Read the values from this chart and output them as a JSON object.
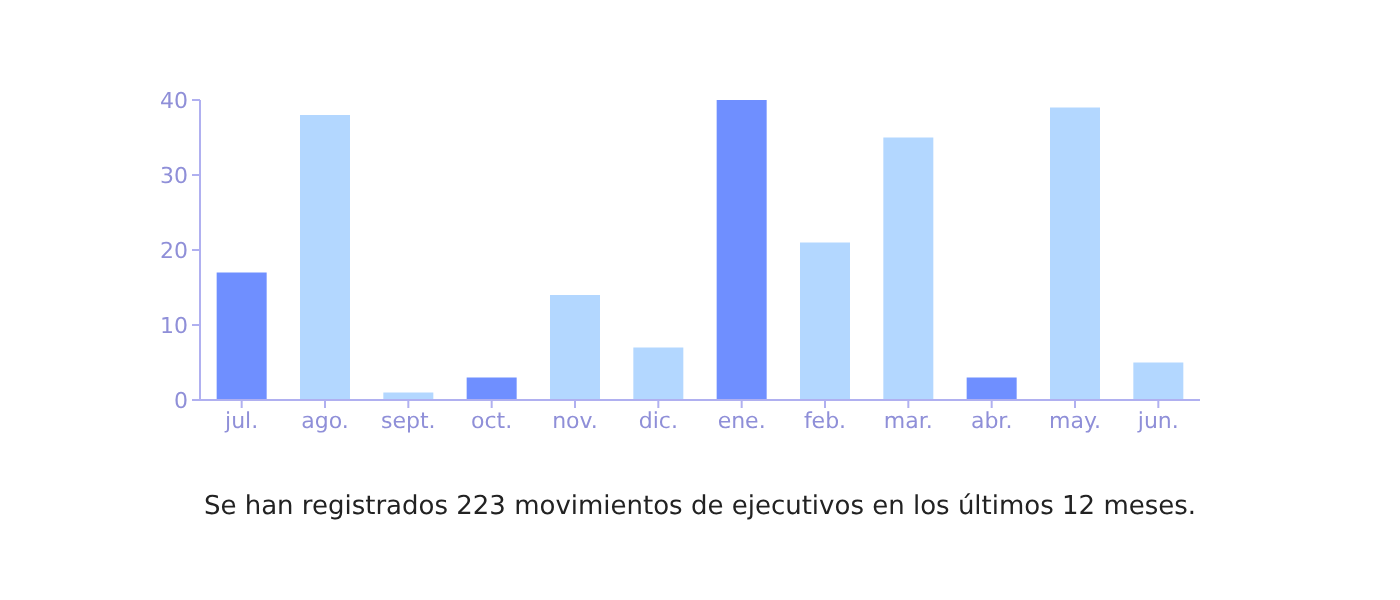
{
  "chart_data": {
    "type": "bar",
    "categories": [
      "jul.",
      "ago.",
      "sept.",
      "oct.",
      "nov.",
      "dic.",
      "ene.",
      "feb.",
      "mar.",
      "abr.",
      "may.",
      "jun."
    ],
    "values": [
      17,
      38,
      1,
      3,
      14,
      7,
      40,
      21,
      35,
      3,
      39,
      5
    ],
    "colors": [
      "#6f8fff",
      "#b3d7ff",
      "#b3d7ff",
      "#6f8fff",
      "#b3d7ff",
      "#b3d7ff",
      "#6f8fff",
      "#b3d7ff",
      "#b3d7ff",
      "#6f8fff",
      "#b3d7ff",
      "#b3d7ff"
    ],
    "ylim": [
      0,
      40
    ],
    "yticks": [
      0,
      10,
      20,
      30,
      40
    ],
    "grid": false,
    "annotations": [
      "Se han registrados 223 movimientos de ejecutivos en los últimos 12 meses."
    ]
  }
}
